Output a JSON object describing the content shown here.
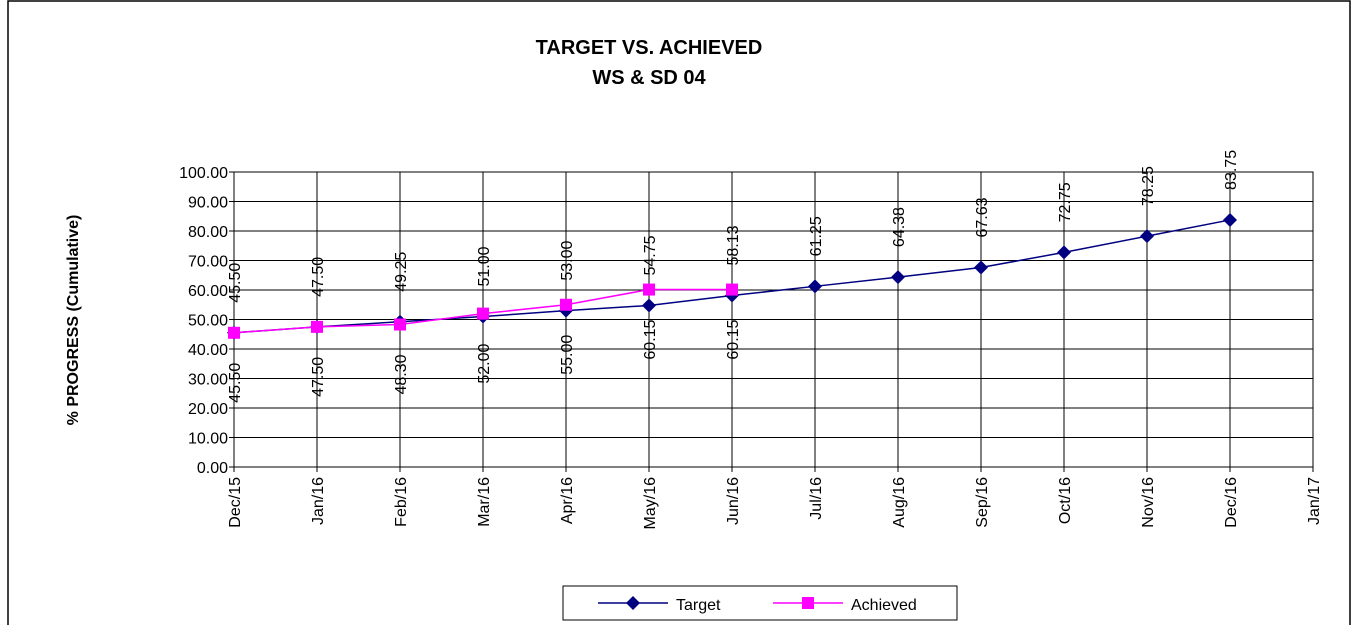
{
  "chart_data": {
    "type": "line",
    "title": "TARGET VS. ACHIEVED",
    "subtitle": "WS & SD 04",
    "y_label": "% PROGRESS (Cumulative)",
    "xticks": [
      "Dec/15",
      "Jan/16",
      "Feb/16",
      "Mar/16",
      "Apr/16",
      "May/16",
      "Jun/16",
      "Jul/16",
      "Aug/16",
      "Sep/16",
      "Oct/16",
      "Nov/16",
      "Dec/16",
      "Jan/17"
    ],
    "x": [
      "Dec/15",
      "Jan/16",
      "Feb/16",
      "Mar/16",
      "Apr/16",
      "May/16",
      "Jun/16",
      "Jul/16",
      "Aug/16",
      "Sep/16",
      "Oct/16",
      "Nov/16",
      "Dec/16"
    ],
    "ylim": [
      0,
      100
    ],
    "yticks": [
      {
        "value": 0,
        "label": "0.00"
      },
      {
        "value": 10,
        "label": "10.00"
      },
      {
        "value": 20,
        "label": "20.00"
      },
      {
        "value": 30,
        "label": "30.00"
      },
      {
        "value": 40,
        "label": "40.00"
      },
      {
        "value": 50,
        "label": "50.00"
      },
      {
        "value": 60,
        "label": "60.00"
      },
      {
        "value": 70,
        "label": "70.00"
      },
      {
        "value": 80,
        "label": "80.00"
      },
      {
        "value": 90,
        "label": "90.00"
      },
      {
        "value": 100,
        "label": "100.00"
      }
    ],
    "grid": true,
    "legend": "bottom",
    "series": [
      {
        "name": "Target",
        "color": "#000080",
        "marker": "diamond",
        "values": [
          45.5,
          47.5,
          49.25,
          51,
          53,
          54.75,
          58.13,
          61.25,
          64.38,
          67.63,
          72.75,
          78.25,
          83.75
        ],
        "value_labels": [
          "45.50",
          "47.50",
          "49.25",
          "51.00",
          "53.00",
          "54.75",
          "58.13",
          "61.25",
          "64.38",
          "67.63",
          "72.75",
          "78.25",
          "83.75"
        ]
      },
      {
        "name": "Achieved",
        "color": "#ff00ff",
        "marker": "square",
        "values": [
          45.5,
          47.5,
          48.3,
          52,
          55,
          60.15,
          60.15,
          null,
          null,
          null,
          null,
          null,
          null
        ],
        "value_labels": [
          "45.50",
          "47.50",
          "48.30",
          "52.00",
          "55.00",
          "60.15",
          "60.15",
          null,
          null,
          null,
          null,
          null,
          null
        ]
      }
    ]
  }
}
